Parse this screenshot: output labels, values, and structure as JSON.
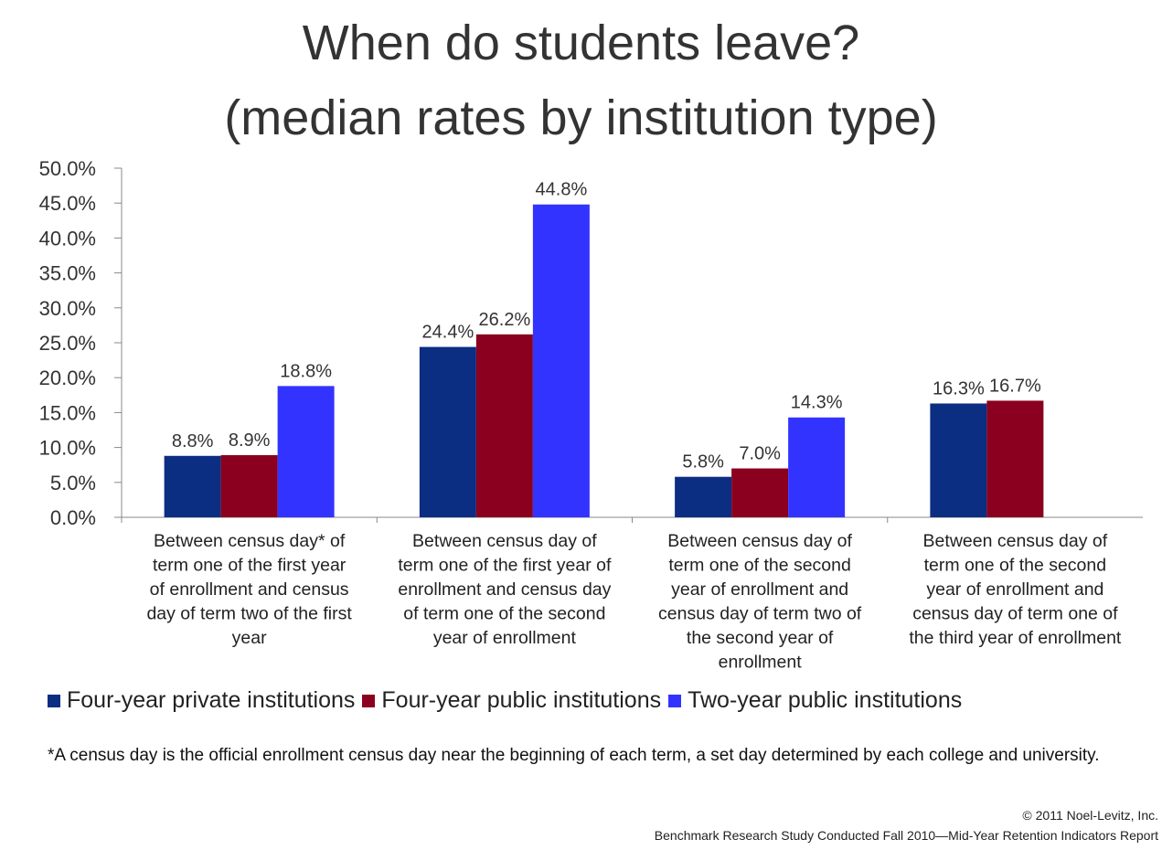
{
  "chart_data": {
    "type": "bar",
    "title": [
      "When do students leave?",
      "(median rates by institution type)"
    ],
    "xlabel": "",
    "ylabel": "",
    "ylim": [
      0,
      50
    ],
    "yticks": [
      "0.0%",
      "5.0%",
      "10.0%",
      "15.0%",
      "20.0%",
      "25.0%",
      "30.0%",
      "35.0%",
      "40.0%",
      "45.0%",
      "50.0%"
    ],
    "categories": [
      [
        "Between census day* of",
        "term one of the first year",
        "of enrollment and census",
        "day of term two of the first",
        "year"
      ],
      [
        "Between census day of",
        "term one of the first year of",
        "enrollment and census day",
        "of term one of the second",
        "year of enrollment"
      ],
      [
        "Between census day of",
        "term one of the second",
        "year of enrollment and",
        "census day of term two of",
        "the second year of",
        "enrollment"
      ],
      [
        "Between census day of",
        "term one of the second",
        "year of enrollment and",
        "census day of term one of",
        "the third year of enrollment"
      ]
    ],
    "series": [
      {
        "name": "Four-year private institutions",
        "color": "#0B2D82",
        "values": [
          8.8,
          24.4,
          5.8,
          16.3
        ],
        "labels": [
          "8.8%",
          "24.4%",
          "5.8%",
          "16.3%"
        ]
      },
      {
        "name": "Four-year public institutions",
        "color": "#8B001E",
        "values": [
          8.9,
          26.2,
          7.0,
          16.7
        ],
        "labels": [
          "8.9%",
          "26.2%",
          "7.0%",
          "16.7%"
        ]
      },
      {
        "name": "Two-year public institutions",
        "color": "#3333FF",
        "values": [
          18.8,
          44.8,
          14.3,
          null
        ],
        "labels": [
          "18.8%",
          "44.8%",
          "14.3%",
          ""
        ]
      }
    ],
    "legend_position": "bottom",
    "grid": false
  },
  "footnote": "*A census day is the official enrollment  census day near the beginning  of each term, a set day  determined by each college and university.",
  "footer": {
    "copyright": "© 2011 Noel-Levitz, Inc.",
    "source": "Benchmark Research Study Conducted Fall 2010—Mid-Year Retention Indicators Report"
  }
}
